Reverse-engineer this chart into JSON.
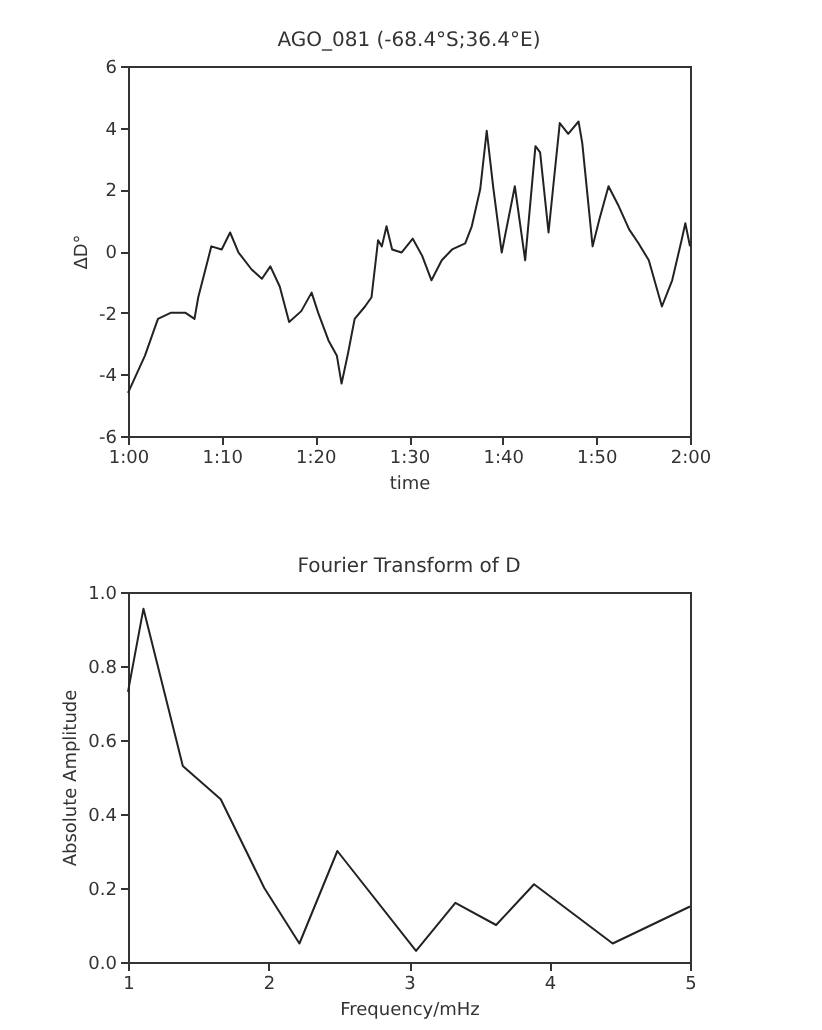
{
  "chart_data": [
    {
      "type": "line",
      "title": "AGO_081 (-68.4°S;36.4°E)",
      "xlabel": "time",
      "ylabel": "ΔD°",
      "x": [
        1.0,
        1.03,
        1.0533,
        1.0767,
        1.1017,
        1.1183,
        1.125,
        1.1483,
        1.1667,
        1.1817,
        1.1967,
        1.22,
        1.2383,
        1.2533,
        1.27,
        1.2867,
        1.3083,
        1.3267,
        1.3383,
        1.3567,
        1.3717,
        1.38,
        1.3917,
        1.4033,
        1.4217,
        1.4333,
        1.445,
        1.4517,
        1.46,
        1.47,
        1.4867,
        1.5067,
        1.5233,
        1.54,
        1.5583,
        1.5767,
        1.6,
        1.6117,
        1.6267,
        1.6383,
        1.65,
        1.665,
        1.6883,
        1.7067,
        1.725,
        1.7333,
        1.7483,
        1.7567,
        1.7683,
        1.7833,
        1.8017,
        1.8083,
        1.8267,
        1.8383,
        1.855,
        1.8733,
        1.8917,
        1.9083,
        1.9267,
        1.95,
        1.9683,
        1.985,
        1.9917,
        2.0
      ],
      "series": [
        {
          "color": "#222222",
          "values": [
            -4.6,
            -3.4,
            -2.2,
            -2.0,
            -2.0,
            -2.2,
            -1.5,
            0.15,
            0.05,
            0.6,
            -0.05,
            -0.6,
            -0.9,
            -0.5,
            -1.15,
            -2.3,
            -1.95,
            -1.35,
            -2.0,
            -2.9,
            -3.4,
            -4.3,
            -3.3,
            -2.2,
            -1.8,
            -1.5,
            0.35,
            0.15,
            0.8,
            0.05,
            -0.05,
            0.4,
            -0.15,
            -0.95,
            -0.3,
            0.05,
            0.25,
            0.8,
            2.0,
            3.9,
            2.05,
            -0.05,
            2.1,
            -0.3,
            3.4,
            3.2,
            0.6,
            2.1,
            4.15,
            3.8,
            4.2,
            3.5,
            0.15,
            1.0,
            2.1,
            1.45,
            0.7,
            0.25,
            -0.3,
            -1.8,
            -0.95,
            0.35,
            0.9,
            0.15
          ]
        }
      ],
      "xlim": [
        1.0,
        2.0
      ],
      "xticks": [
        {
          "value": 1.0,
          "label": "1:00"
        },
        {
          "value": 1.1667,
          "label": "1:10"
        },
        {
          "value": 1.3333,
          "label": "1:20"
        },
        {
          "value": 1.5,
          "label": "1:30"
        },
        {
          "value": 1.6667,
          "label": "1:40"
        },
        {
          "value": 1.8333,
          "label": "1:50"
        },
        {
          "value": 2.0,
          "label": "2:00"
        }
      ],
      "ylim": [
        -6,
        6
      ],
      "yticks": [
        -6,
        -4,
        -2,
        0,
        2,
        4,
        6
      ],
      "grid": false
    },
    {
      "type": "line",
      "title": "Fourier Transform of D",
      "xlabel": "Frequency/mHz",
      "ylabel": "Absolute Amplitude",
      "x": [
        1.0,
        1.11,
        1.39,
        1.66,
        1.97,
        2.22,
        2.49,
        3.05,
        3.33,
        3.62,
        3.89,
        4.45,
        5.0
      ],
      "series": [
        {
          "color": "#222222",
          "values": [
            0.73,
            0.955,
            0.53,
            0.44,
            0.2,
            0.05,
            0.3,
            0.03,
            0.16,
            0.1,
            0.21,
            0.05,
            0.15
          ]
        }
      ],
      "xlim": [
        1,
        5
      ],
      "xticks": [
        1,
        2,
        3,
        4,
        5
      ],
      "ylim": [
        0,
        1.0
      ],
      "yticks": [
        {
          "value": 0,
          "label": "0.0"
        },
        {
          "value": 0.2,
          "label": "0.2"
        },
        {
          "value": 0.4,
          "label": "0.4"
        },
        {
          "value": 0.6,
          "label": "0.6"
        },
        {
          "value": 0.8,
          "label": "0.8"
        },
        {
          "value": 1.0,
          "label": "1.0"
        }
      ],
      "grid": false
    }
  ]
}
